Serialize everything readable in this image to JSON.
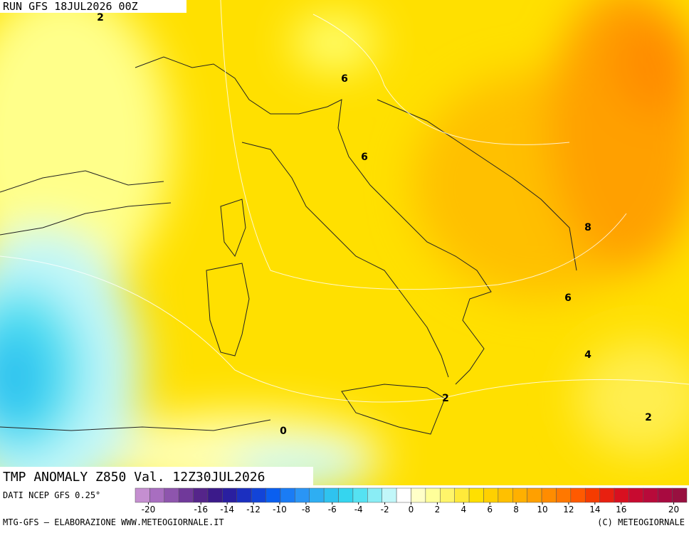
{
  "header": {
    "run": "RUN GFS 18JUL2026 00Z",
    "title": "TMP ANOMALY Z850 Val. 12Z30JUL2026",
    "source": "DATI NCEP GFS 0.25°"
  },
  "contour_labels": [
    2,
    6,
    6,
    8,
    6,
    4,
    2,
    0,
    2
  ],
  "colorbar": {
    "lim": [
      -21,
      21
    ],
    "colors": [
      "#c58fd0",
      "#a86ec0",
      "#8e55ad",
      "#70399a",
      "#55258a",
      "#3b1a8a",
      "#2a1fa0",
      "#1b2fc0",
      "#1244d8",
      "#0a5ff0",
      "#1a7cf5",
      "#2a95f5",
      "#2eaef2",
      "#2fc3ef",
      "#35d5ef",
      "#55e2f2",
      "#8aedf5",
      "#c2f7f9",
      "#ffffff",
      "#ffffc8",
      "#ffff9a",
      "#fff56a",
      "#ffea3a",
      "#ffe000",
      "#ffd000",
      "#ffc000",
      "#ffb000",
      "#ffa000",
      "#ff8c00",
      "#ff7800",
      "#ff5a00",
      "#f53c00",
      "#e82010",
      "#d81020",
      "#c80a30",
      "#b80a3a",
      "#a80a40",
      "#981040"
    ],
    "ticks": [
      -20,
      -16,
      -14,
      -12,
      -10,
      -8,
      -6,
      -4,
      -2,
      0,
      2,
      4,
      6,
      8,
      10,
      12,
      14,
      16,
      20
    ]
  },
  "footer": {
    "left": "MTG-GFS — ELABORAZIONE WWW.METEOGIORNALE.IT",
    "right": "(C) METEOGIORNALE"
  }
}
